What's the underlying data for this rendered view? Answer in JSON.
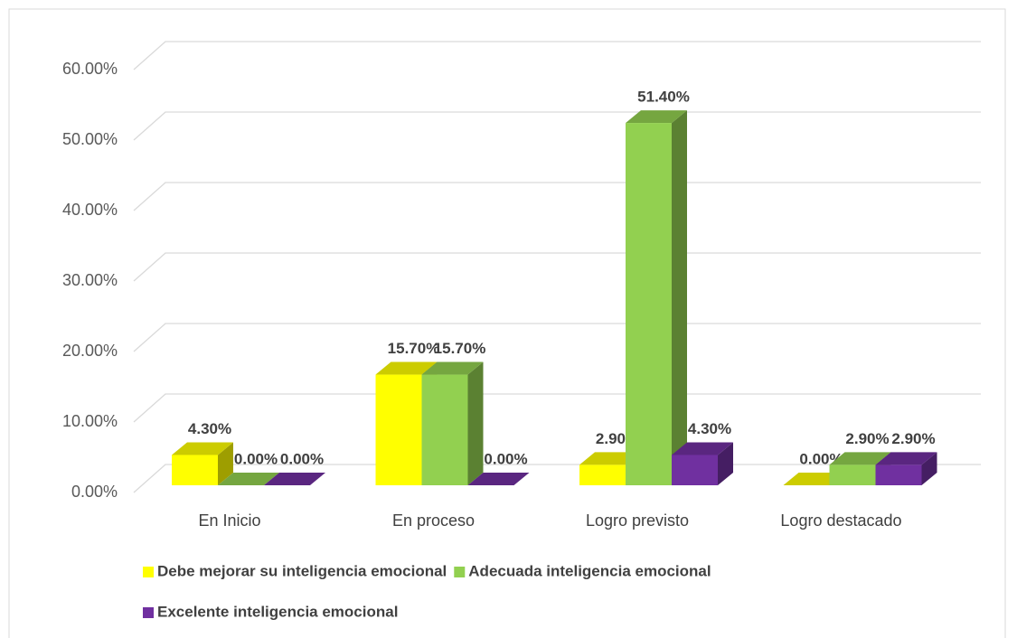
{
  "chart_data": {
    "type": "bar3d",
    "categories": [
      "En Inicio",
      "En proceso",
      "Logro previsto",
      "Logro destacado"
    ],
    "series": [
      {
        "name": "Debe mejorar su inteligencia emocional",
        "color": "#ffff00",
        "values": [
          4.3,
          15.7,
          2.9,
          0.0
        ],
        "value_labels": [
          "4.30%",
          "15.70%",
          "2.90%",
          "0.00%"
        ]
      },
      {
        "name": "Adecuada inteligencia emocional",
        "color": "#92d050",
        "values": [
          0.0,
          15.7,
          51.4,
          2.9
        ],
        "value_labels": [
          "0.00%",
          "15.70%",
          "51.40%",
          "2.90%"
        ]
      },
      {
        "name": "Excelente inteligencia emocional",
        "color": "#7030a0",
        "values": [
          0.0,
          0.0,
          4.3,
          2.9
        ],
        "value_labels": [
          "0.00%",
          "0.00%",
          "4.30%",
          "2.90%"
        ]
      }
    ],
    "ylim": [
      0,
      60
    ],
    "yticks": [
      {
        "value": 0,
        "label": "0.00%"
      },
      {
        "value": 10,
        "label": "10.00%"
      },
      {
        "value": 20,
        "label": "20.00%"
      },
      {
        "value": 30,
        "label": "30.00%"
      },
      {
        "value": 40,
        "label": "40.00%"
      },
      {
        "value": 50,
        "label": "50.00%"
      },
      {
        "value": 60,
        "label": "60.00%"
      }
    ],
    "grid": true,
    "legend": "bottom"
  }
}
